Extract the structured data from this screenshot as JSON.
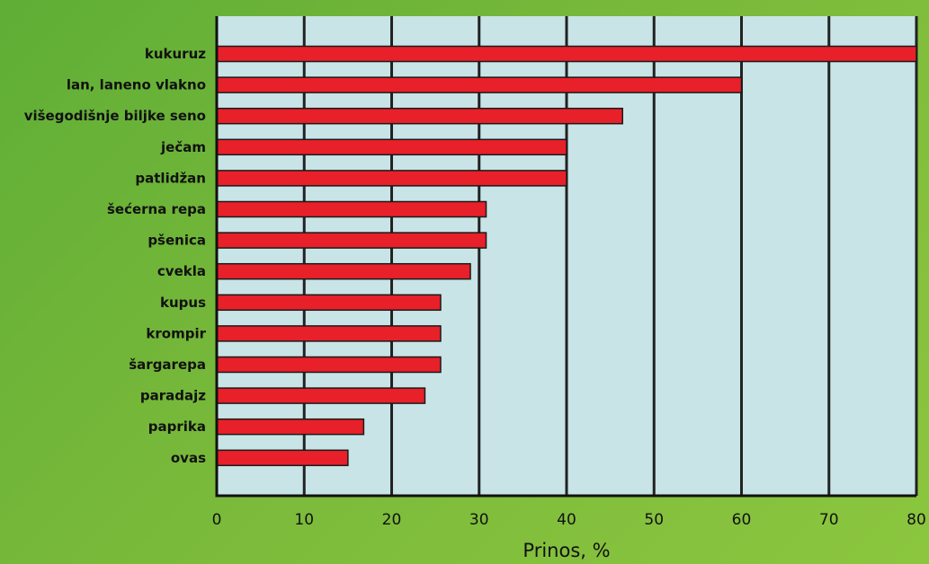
{
  "chart_data": {
    "type": "bar",
    "orientation": "horizontal",
    "categories": [
      "kukuruz",
      "lan, laneno vlakno",
      "višegodišnje biljke seno",
      "ječam",
      "patlidžan",
      "šećerna repa",
      "pšenica",
      "cvekla",
      "kupus",
      "krompir",
      "šargarepa",
      "paradajz",
      "paprika",
      "ovas"
    ],
    "values": [
      80,
      60,
      46.4,
      40,
      40,
      30.8,
      30.8,
      29,
      25.6,
      25.6,
      25.6,
      23.8,
      16.8,
      15
    ],
    "xlabel": "Prinos, %",
    "xlim": [
      0,
      80
    ],
    "xticks": [
      0,
      10,
      20,
      30,
      40,
      50,
      60,
      70,
      80
    ],
    "grid": true,
    "colors": {
      "bar_fill": "#e8202a",
      "bar_stroke": "#1a1a1a",
      "plot_background": "#c8e4e6",
      "grid": "#222222"
    }
  }
}
